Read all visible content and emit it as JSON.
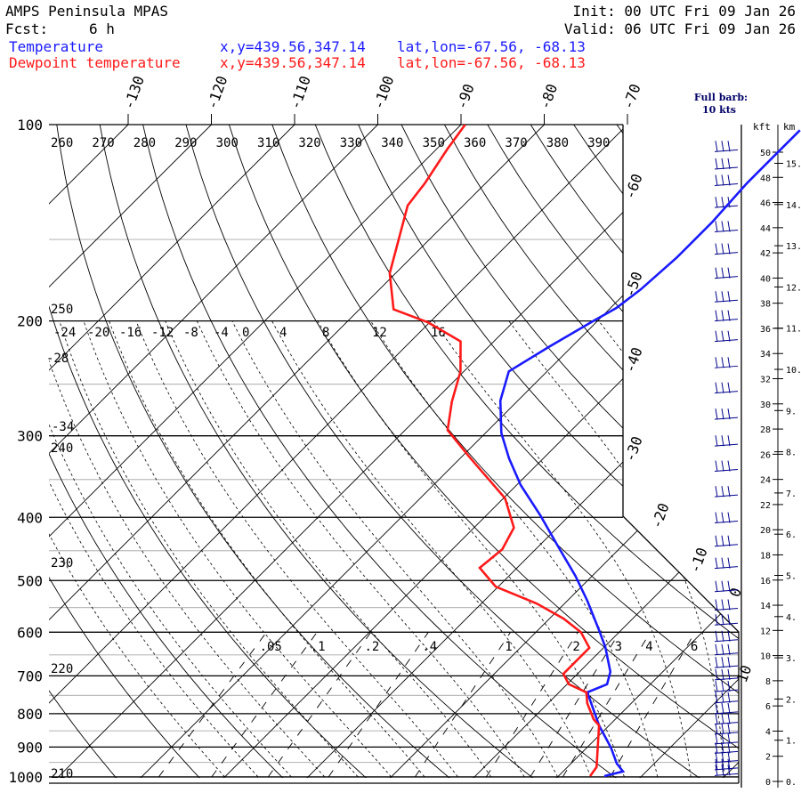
{
  "header": {
    "title": "AMPS Peninsula MPAS",
    "fcst_label": "Fcst:",
    "fcst_value": "6 h",
    "init": "Init: 00 UTC Fri 09 Jan 26",
    "valid": "Valid: 06 UTC Fri 09 Jan 26"
  },
  "legend": [
    {
      "name": "Temperature",
      "xy": "x,y=439.56,347.14",
      "latlon": "lat,lon=-67.56, -68.13",
      "color": "#1a1aff"
    },
    {
      "name": "Dewpoint temperature",
      "xy": "x,y=439.56,347.14",
      "latlon": "lat,lon=-67.56, -68.13",
      "color": "#ff1a1a"
    }
  ],
  "barb_note": {
    "line1": "Full barb:",
    "line2": "10 kts"
  },
  "chart_data": {
    "type": "line",
    "subtype": "skew-T log-P",
    "ylabel": "Pressure (hPa)",
    "pressure_labels": [
      "100",
      "200",
      "300",
      "400",
      "500",
      "600",
      "700",
      "800",
      "900",
      "1000"
    ],
    "top_isotherm_labels": [
      "-130",
      "-120",
      "-110",
      "-100",
      "-90",
      "-80",
      "-70"
    ],
    "right_isotherm_labels": [
      "-60",
      "-50",
      "-40",
      "-30",
      "-20",
      "-10",
      "0",
      "10"
    ],
    "theta_top_labels": [
      "260",
      "270",
      "280",
      "290",
      "300",
      "310",
      "320",
      "330",
      "340",
      "350",
      "360",
      "370",
      "380",
      "390"
    ],
    "theta_left_labels": [
      "250",
      "240",
      "230",
      "220",
      "210"
    ],
    "theta_w_labels": [
      "-24",
      "-20",
      "-16",
      "-12",
      "-8",
      "-4",
      "0",
      "4",
      "8",
      "12",
      "16"
    ],
    "left_misc_labels": [
      "-28",
      "-34"
    ],
    "mixing_ratio_labels": [
      ".05",
      ".1",
      ".2",
      ".4",
      "1",
      "2",
      "3",
      "4",
      "6"
    ],
    "mixing_ratio_values": [
      0.05,
      0.1,
      0.2,
      0.4,
      1,
      2,
      3,
      4,
      6
    ],
    "altitude_axis": {
      "kft_label": "kft",
      "km_label": "km",
      "kft_ticks": [
        "0",
        "2",
        "4",
        "6",
        "8",
        "10",
        "12",
        "14",
        "16",
        "18",
        "20",
        "22",
        "24",
        "26",
        "28",
        "30",
        "32",
        "34",
        "36",
        "38",
        "40",
        "42",
        "44",
        "46",
        "48",
        "50"
      ],
      "km_ticks": [
        "0.",
        "1.",
        "2.",
        "3.",
        "4.",
        "5.",
        "6.",
        "7.",
        "8.",
        "9.",
        "10.",
        "11.",
        "12.",
        "13.",
        "14.",
        "15."
      ]
    },
    "series": [
      {
        "name": "Temperature",
        "color": "#1a1aff",
        "p": [
          997,
          981,
          954,
          902,
          834,
          742,
          721,
          690,
          632,
          594,
          537,
          492,
          442,
          398,
          357,
          325,
          297,
          265,
          239,
          219,
          200,
          191,
          179,
          160,
          141,
          123,
          112,
          102
        ],
        "T": [
          5.5,
          7.2,
          5.5,
          2.9,
          -1.2,
          -6.6,
          -5.2,
          -6.3,
          -9.9,
          -12.8,
          -17.6,
          -22.0,
          -27.8,
          -33.4,
          -39.5,
          -44.1,
          -48.1,
          -52.1,
          -54.6,
          -52.7,
          -50.5,
          -49.3,
          -48.6,
          -48.1,
          -48.1,
          -48.6,
          -48.6,
          -48.6
        ]
      },
      {
        "name": "Dewpoint temperature",
        "color": "#ff1a1a",
        "p": [
          997,
          966,
          834,
          816,
          771,
          742,
          721,
          695,
          634,
          600,
          572,
          542,
          511,
          478,
          448,
          415,
          374,
          323,
          294,
          266,
          239,
          215,
          201,
          192,
          169,
          133,
          123,
          109,
          100
        ],
        "T": [
          3.8,
          3.5,
          -1.2,
          -2.6,
          -5.3,
          -6.7,
          -9.8,
          -11.7,
          -11.7,
          -14.6,
          -18.3,
          -23.4,
          -30.3,
          -34.5,
          -34.0,
          -35.2,
          -39.8,
          -49.1,
          -54.9,
          -57.8,
          -60.4,
          -64.0,
          -70.2,
          -75.9,
          -80.7,
          -86.7,
          -87.3,
          -88.7,
          -89.5
        ]
      }
    ],
    "wind_barb_pressures_hPa": [
      110,
      117,
      124,
      134,
      146,
      158,
      172,
      187,
      200,
      215,
      236,
      258,
      283,
      311,
      340,
      372,
      408,
      443,
      479,
      520,
      555,
      585,
      620,
      650,
      680,
      710,
      740,
      770,
      800,
      830,
      860,
      890,
      920,
      950,
      975,
      995
    ]
  }
}
